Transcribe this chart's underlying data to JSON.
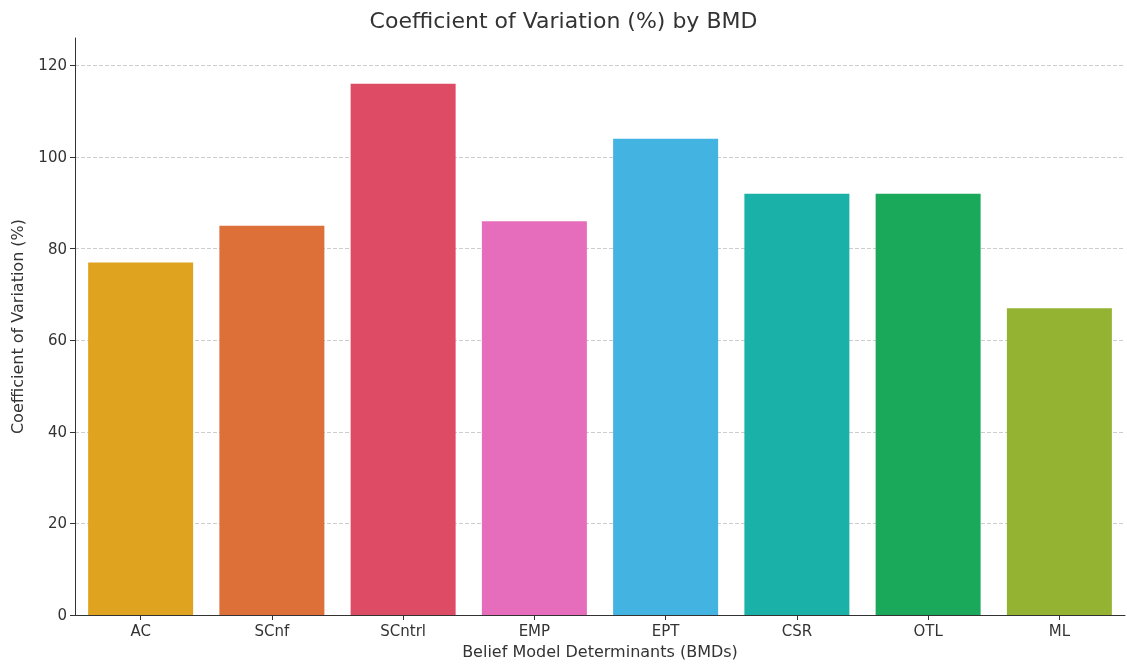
{
  "chart_data": {
    "type": "bar",
    "title": "Coefficient of Variation (%) by BMD",
    "xlabel": "Belief Model Determinants (BMDs)",
    "ylabel": "Coefficient of Variation (%)",
    "categories": [
      "AC",
      "SCnf",
      "SCntrl",
      "EMP",
      "EPT",
      "CSR",
      "OTL",
      "ML"
    ],
    "values": [
      77,
      85,
      116,
      86,
      104,
      92,
      92,
      67
    ],
    "colors": [
      "#e0a320",
      "#dd6f38",
      "#de4b65",
      "#e56dbb",
      "#43b3e2",
      "#1ab2a8",
      "#1aa95a",
      "#94b332"
    ],
    "ylim": [
      0,
      126
    ],
    "yticks": [
      0,
      20,
      40,
      60,
      80,
      100,
      120
    ],
    "grid": "y"
  }
}
